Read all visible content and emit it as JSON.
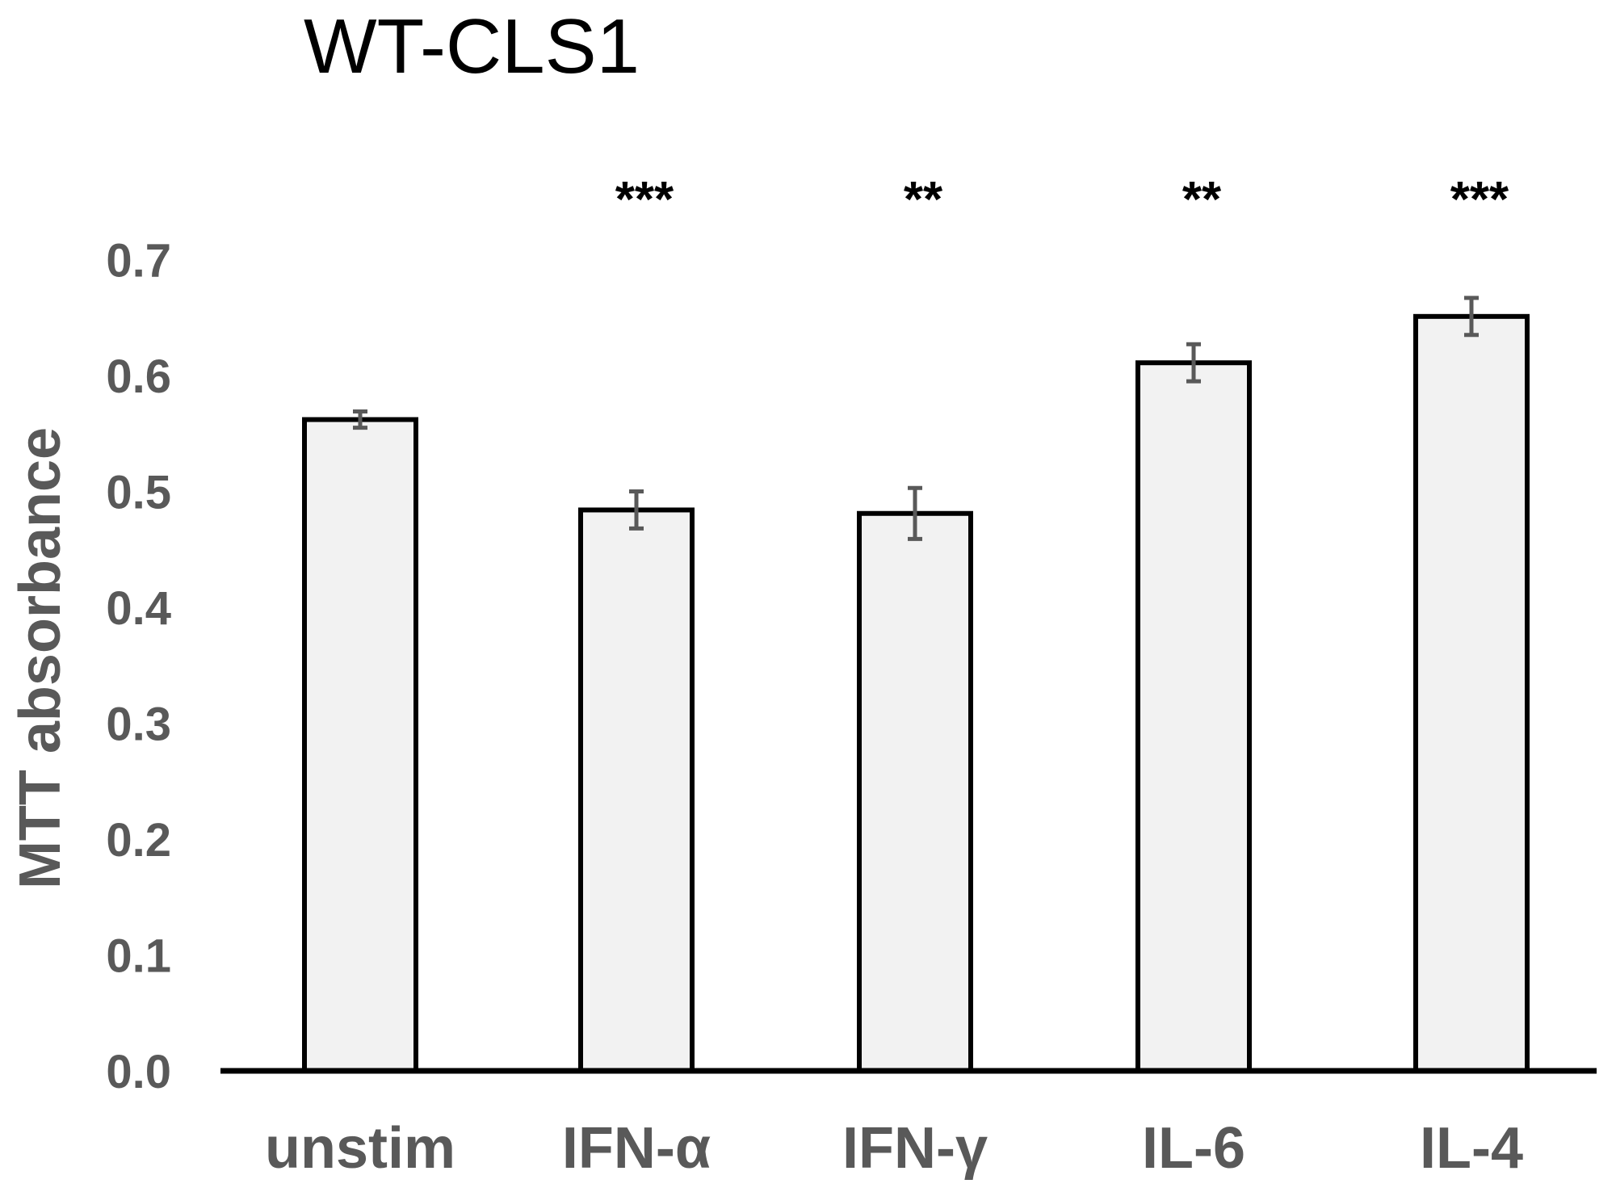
{
  "chart_data": {
    "type": "bar",
    "title": "WT-CLS1",
    "xlabel": "",
    "ylabel": "MTT absorbance",
    "categories": [
      "unstim",
      "IFN-α",
      "IFN-γ",
      "IL-6",
      "IL-4"
    ],
    "values": [
      0.562,
      0.484,
      0.481,
      0.611,
      0.651
    ],
    "errors": [
      0.007,
      0.016,
      0.022,
      0.016,
      0.016
    ],
    "significance": [
      "",
      "***",
      "**",
      "**",
      "***"
    ],
    "ylim": [
      0,
      0.7
    ],
    "yticks": [
      "0.0",
      "0.1",
      "0.2",
      "0.3",
      "0.4",
      "0.5",
      "0.6",
      "0.7"
    ],
    "grid": false,
    "legend": "none",
    "colors": {
      "bar_fill": "#f2f2f2",
      "bar_stroke": "#000000",
      "error_bar": "#595959",
      "axis": "#000000"
    }
  }
}
